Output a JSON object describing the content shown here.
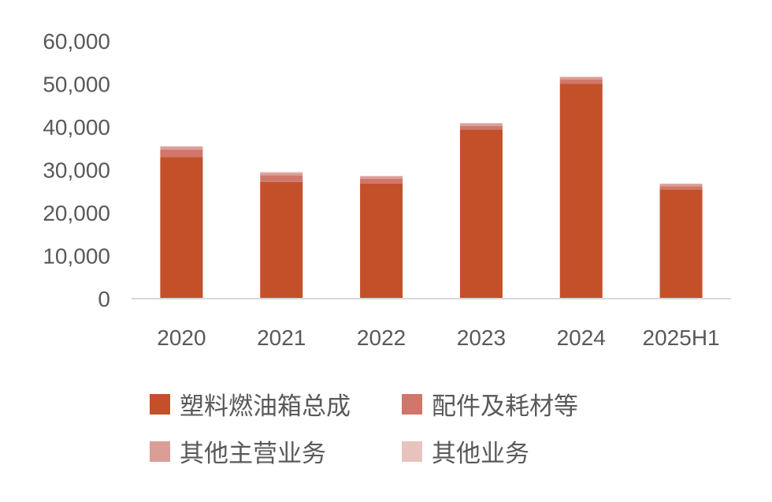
{
  "chart_data": {
    "type": "bar",
    "stacked": true,
    "categories": [
      "2020",
      "2021",
      "2022",
      "2023",
      "2024",
      "2025H1"
    ],
    "series": [
      {
        "name": "塑料燃油箱总成",
        "color": "#C4502A",
        "values": [
          33000,
          27200,
          26800,
          39400,
          50000,
          25400
        ]
      },
      {
        "name": "配件及耗材等",
        "color": "#D0766A",
        "values": [
          1700,
          1500,
          1100,
          800,
          1000,
          800
        ]
      },
      {
        "name": "其他主营业务",
        "color": "#DA9E96",
        "values": [
          700,
          600,
          600,
          600,
          600,
          500
        ]
      },
      {
        "name": "其他业务",
        "color": "#E8C3BE",
        "values": [
          100,
          200,
          100,
          100,
          100,
          100
        ]
      }
    ],
    "y_ticks": [
      "0",
      "10,000",
      "20,000",
      "30,000",
      "40,000",
      "50,000",
      "60,000"
    ],
    "ylim": [
      0,
      60000
    ],
    "grid": false,
    "legend_position": "bottom"
  }
}
